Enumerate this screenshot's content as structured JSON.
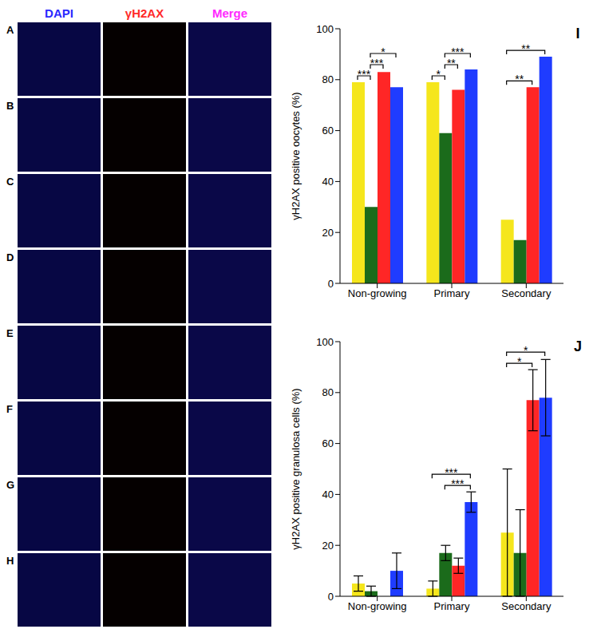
{
  "panels": {
    "columns": [
      "DAPI",
      "γH2AX",
      "Merge"
    ],
    "rows": [
      "A",
      "B",
      "C",
      "D",
      "E",
      "F",
      "G",
      "H"
    ]
  },
  "chart_data": [
    {
      "type": "bar",
      "title": "I",
      "categories": [
        "Non-growing",
        "Primary",
        "Secondary"
      ],
      "y_label": "γH2AX positive oocytes (%)",
      "ylim": [
        0,
        100
      ],
      "yticks": [
        0,
        20,
        40,
        60,
        80,
        100
      ],
      "series": [
        {
          "color": "#f5e61c",
          "values": [
            79,
            79,
            25
          ]
        },
        {
          "color": "#1b6b1b",
          "values": [
            30,
            59,
            17
          ]
        },
        {
          "color": "#ff2626",
          "values": [
            83,
            76,
            77
          ]
        },
        {
          "color": "#1f3cff",
          "values": [
            77,
            84,
            89
          ]
        }
      ],
      "annotations": [
        {
          "category": 0,
          "from": 0,
          "to": 1,
          "text": "***"
        },
        {
          "category": 0,
          "from": 1,
          "to": 2,
          "text": "***"
        },
        {
          "category": 0,
          "from": 1,
          "to": 3,
          "text": "*"
        },
        {
          "category": 1,
          "from": 0,
          "to": 1,
          "text": "*"
        },
        {
          "category": 1,
          "from": 1,
          "to": 2,
          "text": "**"
        },
        {
          "category": 1,
          "from": 1,
          "to": 3,
          "text": "***"
        },
        {
          "category": 2,
          "from": 0,
          "to": 2,
          "text": "**"
        },
        {
          "category": 2,
          "from": 0,
          "to": 3,
          "text": "**"
        }
      ]
    },
    {
      "type": "bar",
      "title": "J",
      "categories": [
        "Non-growing",
        "Primary",
        "Secondary"
      ],
      "y_label": "γH2AX positive granulosa cells (%)",
      "ylim": [
        0,
        100
      ],
      "yticks": [
        0,
        20,
        40,
        60,
        80,
        100
      ],
      "series": [
        {
          "color": "#f5e61c",
          "values": [
            5,
            3,
            25
          ],
          "errors": [
            3,
            3,
            25
          ]
        },
        {
          "color": "#1b6b1b",
          "values": [
            2,
            17,
            17
          ],
          "errors": [
            2,
            3,
            17
          ]
        },
        {
          "color": "#ff2626",
          "values": [
            0,
            12,
            77
          ],
          "errors": [
            0,
            3,
            12
          ]
        },
        {
          "color": "#1f3cff",
          "values": [
            10,
            37,
            78
          ],
          "errors": [
            7,
            4,
            15
          ]
        }
      ],
      "annotations": [
        {
          "category": 1,
          "from": 1,
          "to": 3,
          "text": "***"
        },
        {
          "category": 1,
          "from": 0,
          "to": 3,
          "text": "***"
        },
        {
          "category": 2,
          "from": 0,
          "to": 2,
          "text": "*"
        },
        {
          "category": 2,
          "from": 0,
          "to": 3,
          "text": "*"
        }
      ]
    }
  ]
}
